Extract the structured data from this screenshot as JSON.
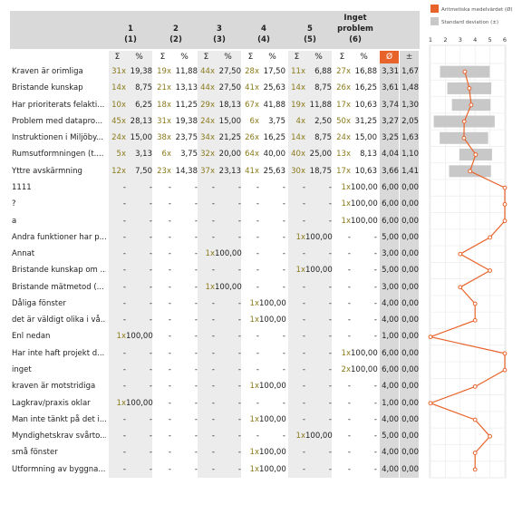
{
  "columns": [
    {
      "num": "1",
      "sub": "(1)"
    },
    {
      "num": "2",
      "sub": "(2)"
    },
    {
      "num": "3",
      "sub": "(3)"
    },
    {
      "num": "4",
      "sub": "(4)"
    },
    {
      "num": "5",
      "sub": "(5)"
    },
    {
      "num": "Inget",
      "num2": "problem",
      "sub": "(6)"
    }
  ],
  "symbols": {
    "sum": "Σ",
    "pct": "%",
    "mean": "Ø",
    "sd": "±"
  },
  "legend": {
    "mean_label": "Aritmetiska medelvärdet (Ø)",
    "sd_label": "Standard deviation (±)",
    "mean_color": "#e8632a",
    "sd_color": "#c8c8c8"
  },
  "chart_data": {
    "type": "table",
    "xlim": [
      1,
      6
    ],
    "ticks": [
      "1",
      "2",
      "3",
      "4",
      "5",
      "6"
    ],
    "rows": [
      {
        "label": "Kraven är orimliga",
        "cells": [
          [
            "31x",
            "19,38"
          ],
          [
            "19x",
            "11,88"
          ],
          [
            "44x",
            "27,50"
          ],
          [
            "28x",
            "17,50"
          ],
          [
            "11x",
            "6,88"
          ],
          [
            "27x",
            "16,88"
          ]
        ],
        "mean": "3,31",
        "sd": "1,67",
        "m": 3.31,
        "s": 1.67
      },
      {
        "label": "Bristande kunskap",
        "cells": [
          [
            "14x",
            "8,75"
          ],
          [
            "21x",
            "13,13"
          ],
          [
            "44x",
            "27,50"
          ],
          [
            "41x",
            "25,63"
          ],
          [
            "14x",
            "8,75"
          ],
          [
            "26x",
            "16,25"
          ]
        ],
        "mean": "3,61",
        "sd": "1,48",
        "m": 3.61,
        "s": 1.48
      },
      {
        "label": "Har prioriterats felakti...",
        "cells": [
          [
            "10x",
            "6,25"
          ],
          [
            "18x",
            "11,25"
          ],
          [
            "29x",
            "18,13"
          ],
          [
            "67x",
            "41,88"
          ],
          [
            "19x",
            "11,88"
          ],
          [
            "17x",
            "10,63"
          ]
        ],
        "mean": "3,74",
        "sd": "1,30",
        "m": 3.74,
        "s": 1.3
      },
      {
        "label": "Problem med datapro...",
        "cells": [
          [
            "45x",
            "28,13"
          ],
          [
            "31x",
            "19,38"
          ],
          [
            "24x",
            "15,00"
          ],
          [
            "6x",
            "3,75"
          ],
          [
            "4x",
            "2,50"
          ],
          [
            "50x",
            "31,25"
          ]
        ],
        "mean": "3,27",
        "sd": "2,05",
        "m": 3.27,
        "s": 2.05
      },
      {
        "label": "Instruktionen i Miljöby...",
        "cells": [
          [
            "24x",
            "15,00"
          ],
          [
            "38x",
            "23,75"
          ],
          [
            "34x",
            "21,25"
          ],
          [
            "26x",
            "16,25"
          ],
          [
            "14x",
            "8,75"
          ],
          [
            "24x",
            "15,00"
          ]
        ],
        "mean": "3,25",
        "sd": "1,63",
        "m": 3.25,
        "s": 1.63
      },
      {
        "label": "Rumsutformningen (t....",
        "cells": [
          [
            "5x",
            "3,13"
          ],
          [
            "6x",
            "3,75"
          ],
          [
            "32x",
            "20,00"
          ],
          [
            "64x",
            "40,00"
          ],
          [
            "40x",
            "25,00"
          ],
          [
            "13x",
            "8,13"
          ]
        ],
        "mean": "4,04",
        "sd": "1,10",
        "m": 4.04,
        "s": 1.1
      },
      {
        "label": "Yttre avskärmning",
        "cells": [
          [
            "12x",
            "7,50"
          ],
          [
            "23x",
            "14,38"
          ],
          [
            "37x",
            "23,13"
          ],
          [
            "41x",
            "25,63"
          ],
          [
            "30x",
            "18,75"
          ],
          [
            "17x",
            "10,63"
          ]
        ],
        "mean": "3,66",
        "sd": "1,41",
        "m": 3.66,
        "s": 1.41
      },
      {
        "label": "1111",
        "cells": [
          [
            "-",
            "-"
          ],
          [
            "-",
            "-"
          ],
          [
            "-",
            "-"
          ],
          [
            "-",
            "-"
          ],
          [
            "-",
            "-"
          ],
          [
            "1x",
            "100,00"
          ]
        ],
        "mean": "6,00",
        "sd": "0,00",
        "m": 6,
        "s": 0
      },
      {
        "label": "?",
        "cells": [
          [
            "-",
            "-"
          ],
          [
            "-",
            "-"
          ],
          [
            "-",
            "-"
          ],
          [
            "-",
            "-"
          ],
          [
            "-",
            "-"
          ],
          [
            "1x",
            "100,00"
          ]
        ],
        "mean": "6,00",
        "sd": "0,00",
        "m": 6,
        "s": 0
      },
      {
        "label": "a",
        "cells": [
          [
            "-",
            "-"
          ],
          [
            "-",
            "-"
          ],
          [
            "-",
            "-"
          ],
          [
            "-",
            "-"
          ],
          [
            "-",
            "-"
          ],
          [
            "1x",
            "100,00"
          ]
        ],
        "mean": "6,00",
        "sd": "0,00",
        "m": 6,
        "s": 0
      },
      {
        "label": "Andra funktioner har p...",
        "cells": [
          [
            "-",
            "-"
          ],
          [
            "-",
            "-"
          ],
          [
            "-",
            "-"
          ],
          [
            "-",
            "-"
          ],
          [
            "1x",
            "100,00"
          ],
          [
            "-",
            "-"
          ]
        ],
        "mean": "5,00",
        "sd": "0,00",
        "m": 5,
        "s": 0
      },
      {
        "label": "Annat",
        "cells": [
          [
            "-",
            "-"
          ],
          [
            "-",
            "-"
          ],
          [
            "1x",
            "100,00"
          ],
          [
            "-",
            "-"
          ],
          [
            "-",
            "-"
          ],
          [
            "-",
            "-"
          ]
        ],
        "mean": "3,00",
        "sd": "0,00",
        "m": 3,
        "s": 0
      },
      {
        "label": "Bristande kunskap om ...",
        "cells": [
          [
            "-",
            "-"
          ],
          [
            "-",
            "-"
          ],
          [
            "-",
            "-"
          ],
          [
            "-",
            "-"
          ],
          [
            "1x",
            "100,00"
          ],
          [
            "-",
            "-"
          ]
        ],
        "mean": "5,00",
        "sd": "0,00",
        "m": 5,
        "s": 0
      },
      {
        "label": "Bristande mätmetod (...",
        "cells": [
          [
            "-",
            "-"
          ],
          [
            "-",
            "-"
          ],
          [
            "1x",
            "100,00"
          ],
          [
            "-",
            "-"
          ],
          [
            "-",
            "-"
          ],
          [
            "-",
            "-"
          ]
        ],
        "mean": "3,00",
        "sd": "0,00",
        "m": 3,
        "s": 0
      },
      {
        "label": "Dåliga fönster",
        "cells": [
          [
            "-",
            "-"
          ],
          [
            "-",
            "-"
          ],
          [
            "-",
            "-"
          ],
          [
            "1x",
            "100,00"
          ],
          [
            "-",
            "-"
          ],
          [
            "-",
            "-"
          ]
        ],
        "mean": "4,00",
        "sd": "0,00",
        "m": 4,
        "s": 0
      },
      {
        "label": "det är väldigt olika i vå...",
        "cells": [
          [
            "-",
            "-"
          ],
          [
            "-",
            "-"
          ],
          [
            "-",
            "-"
          ],
          [
            "1x",
            "100,00"
          ],
          [
            "-",
            "-"
          ],
          [
            "-",
            "-"
          ]
        ],
        "mean": "4,00",
        "sd": "0,00",
        "m": 4,
        "s": 0
      },
      {
        "label": "Enl nedan",
        "cells": [
          [
            "1x",
            "100,00"
          ],
          [
            "-",
            "-"
          ],
          [
            "-",
            "-"
          ],
          [
            "-",
            "-"
          ],
          [
            "-",
            "-"
          ],
          [
            "-",
            "-"
          ]
        ],
        "mean": "1,00",
        "sd": "0,00",
        "m": 1,
        "s": 0
      },
      {
        "label": "Har inte haft projekt d...",
        "cells": [
          [
            "-",
            "-"
          ],
          [
            "-",
            "-"
          ],
          [
            "-",
            "-"
          ],
          [
            "-",
            "-"
          ],
          [
            "-",
            "-"
          ],
          [
            "1x",
            "100,00"
          ]
        ],
        "mean": "6,00",
        "sd": "0,00",
        "m": 6,
        "s": 0
      },
      {
        "label": "inget",
        "cells": [
          [
            "-",
            "-"
          ],
          [
            "-",
            "-"
          ],
          [
            "-",
            "-"
          ],
          [
            "-",
            "-"
          ],
          [
            "-",
            "-"
          ],
          [
            "2x",
            "100,00"
          ]
        ],
        "mean": "6,00",
        "sd": "0,00",
        "m": 6,
        "s": 0
      },
      {
        "label": "kraven är motstridiga",
        "cells": [
          [
            "-",
            "-"
          ],
          [
            "-",
            "-"
          ],
          [
            "-",
            "-"
          ],
          [
            "1x",
            "100,00"
          ],
          [
            "-",
            "-"
          ],
          [
            "-",
            "-"
          ]
        ],
        "mean": "4,00",
        "sd": "0,00",
        "m": 4,
        "s": 0
      },
      {
        "label": "Lagkrav/praxis oklar",
        "cells": [
          [
            "1x",
            "100,00"
          ],
          [
            "-",
            "-"
          ],
          [
            "-",
            "-"
          ],
          [
            "-",
            "-"
          ],
          [
            "-",
            "-"
          ],
          [
            "-",
            "-"
          ]
        ],
        "mean": "1,00",
        "sd": "0,00",
        "m": 1,
        "s": 0
      },
      {
        "label": "Man inte tänkt på det i...",
        "cells": [
          [
            "-",
            "-"
          ],
          [
            "-",
            "-"
          ],
          [
            "-",
            "-"
          ],
          [
            "1x",
            "100,00"
          ],
          [
            "-",
            "-"
          ],
          [
            "-",
            "-"
          ]
        ],
        "mean": "4,00",
        "sd": "0,00",
        "m": 4,
        "s": 0
      },
      {
        "label": "Myndighetskrav svårto...",
        "cells": [
          [
            "-",
            "-"
          ],
          [
            "-",
            "-"
          ],
          [
            "-",
            "-"
          ],
          [
            "-",
            "-"
          ],
          [
            "1x",
            "100,00"
          ],
          [
            "-",
            "-"
          ]
        ],
        "mean": "5,00",
        "sd": "0,00",
        "m": 5,
        "s": 0
      },
      {
        "label": "små fönster",
        "cells": [
          [
            "-",
            "-"
          ],
          [
            "-",
            "-"
          ],
          [
            "-",
            "-"
          ],
          [
            "1x",
            "100,00"
          ],
          [
            "-",
            "-"
          ],
          [
            "-",
            "-"
          ]
        ],
        "mean": "4,00",
        "sd": "0,00",
        "m": 4,
        "s": 0
      },
      {
        "label": "Utformning av byggna...",
        "cells": [
          [
            "-",
            "-"
          ],
          [
            "-",
            "-"
          ],
          [
            "-",
            "-"
          ],
          [
            "1x",
            "100,00"
          ],
          [
            "-",
            "-"
          ],
          [
            "-",
            "-"
          ]
        ],
        "mean": "4,00",
        "sd": "0,00",
        "m": 4,
        "s": 0
      }
    ]
  }
}
